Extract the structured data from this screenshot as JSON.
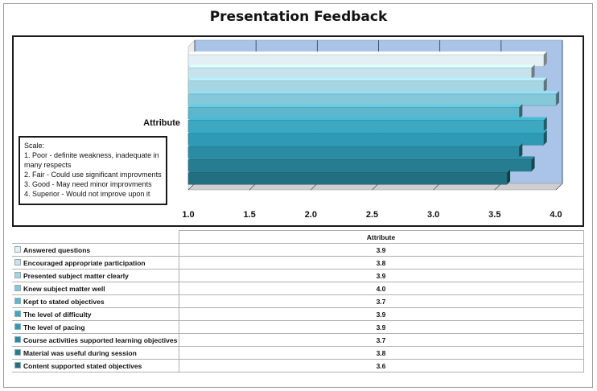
{
  "chart_data": {
    "type": "bar",
    "orientation": "horizontal",
    "title": "Presentation Feedback",
    "ylabel": "Attribute",
    "categories": [
      "Answered questions",
      "Encouraged appropriate participation",
      "Presented subject matter clearly",
      "Knew subject matter well",
      "Kept to stated objectives",
      "The level of difficulty",
      "The level of pacing",
      "Course activities supported learning objectives",
      "Material was useful during session",
      "Content supported stated objectives"
    ],
    "series": [
      {
        "name": "Attribute",
        "values": [
          3.9,
          3.8,
          3.9,
          4.0,
          3.7,
          3.9,
          3.9,
          3.7,
          3.8,
          3.6
        ]
      }
    ],
    "value_labels": [
      "3.9",
      "3.8",
      "3.9",
      "4.0",
      "3.7",
      "3.9",
      "3.9",
      "3.7",
      "3.8",
      "3.6"
    ],
    "xlim": [
      1.0,
      4.0
    ],
    "xticks": [
      "1.0",
      "1.5",
      "2.0",
      "2.5",
      "3.0",
      "3.5",
      "4.0"
    ],
    "grid": true,
    "bar_colors": [
      "#e2f0f5",
      "#c6e3ec",
      "#a7d6e3",
      "#85c8da",
      "#5db7cc",
      "#3fa8c1",
      "#2e9ab3",
      "#2a8ba2",
      "#267d92",
      "#236f82"
    ],
    "wall_color": "#a9c4e6",
    "scale_note": {
      "heading": "Scale:",
      "lines": [
        "1. Poor - definite weakness, inadequate in many respects",
        "2. Fair - Could use significant improvments",
        "3. Good - May need minor improvments",
        "4. Superior - Would not improve upon it"
      ]
    },
    "table_header": "Attribute"
  }
}
